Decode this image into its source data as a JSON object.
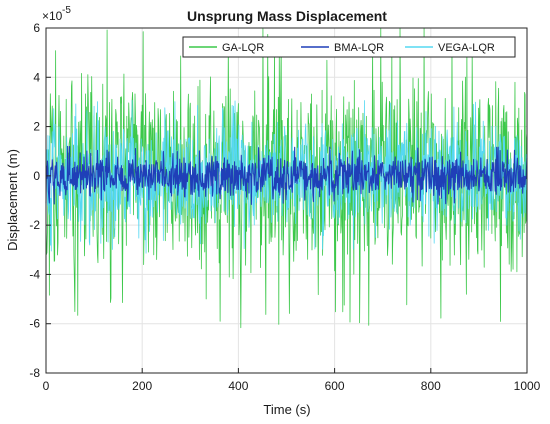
{
  "chart_data": {
    "type": "line",
    "title": "Unsprung Mass Displacement",
    "xlabel": "Time (s)",
    "ylabel": "Displacement (m)",
    "xlim": [
      0,
      1000
    ],
    "ylim": [
      -8e-05,
      6e-05
    ],
    "y_exponent_label": "×10",
    "y_exponent_power": "-5",
    "x_ticks": [
      0,
      200,
      400,
      600,
      800,
      1000
    ],
    "x_tick_labels": [
      "0",
      "200",
      "400",
      "600",
      "800",
      "1000"
    ],
    "y_ticks": [
      -8,
      -6,
      -4,
      -2,
      0,
      2,
      4,
      6
    ],
    "y_tick_labels": [
      "-8",
      "-6",
      "-4",
      "-2",
      "0",
      "2",
      "4",
      "6"
    ],
    "grid": true,
    "legend_position": "top-right",
    "series": [
      {
        "name": "GA-LQR",
        "color": "#3cc84a",
        "amplitude": 4.3,
        "spike": 6.2,
        "seed": 11
      },
      {
        "name": "VEGA-LQR",
        "color": "#55d8f2",
        "amplitude": 2.4,
        "spike": 3.2,
        "seed": 29
      },
      {
        "name": "BMA-LQR",
        "color": "#1f3fb8",
        "amplitude": 0.9,
        "spike": 1.2,
        "seed": 47
      }
    ],
    "legend_order": [
      0,
      2,
      1
    ]
  }
}
